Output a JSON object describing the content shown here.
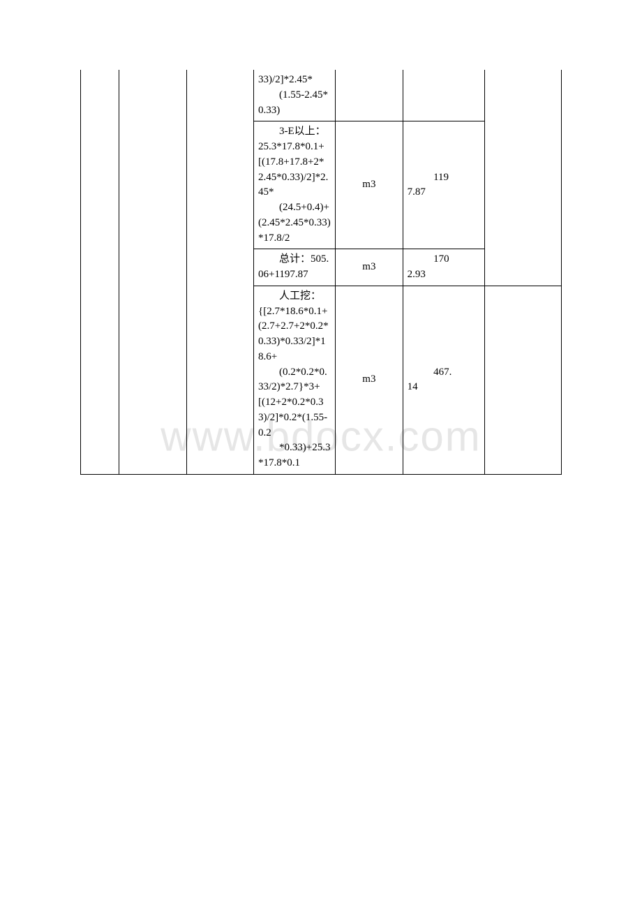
{
  "watermark": "www.bdocx.com",
  "rows": [
    {
      "formula_parts": [
        "33)/2]*2.45*",
        "　　(1.55-2.45*0.33)"
      ],
      "unit": "",
      "value_parts": [
        "",
        ""
      ]
    },
    {
      "formula_parts": [
        "　　3-E以上：25.3*17.8*0.1+[(17.8+17.8+2*2.45*0.33)/2]*2.45*",
        "　　(24.5+0.4)+(2.45*2.45*0.33)*17.8/2"
      ],
      "unit": "m3",
      "value_parts": [
        "119",
        "7.87"
      ]
    },
    {
      "formula_parts": [
        "　　总计：505.06+1197.87"
      ],
      "unit": "m3",
      "value_parts": [
        "170",
        "2.93"
      ]
    },
    {
      "formula_parts": [
        "　　人工挖：{[2.7*18.6*0.1+(2.7+2.7+2*0.2*0.33)*0.33/2]*18.6+",
        "　　(0.2*0.2*0.33/2)*2.7}*3+[(12+2*0.2*0.33)/2]*0.2*(1.55-0.2",
        "　　*0.33)+25.3*17.8*0.1"
      ],
      "unit": "m3",
      "value_parts": [
        "467.",
        "14"
      ]
    }
  ]
}
